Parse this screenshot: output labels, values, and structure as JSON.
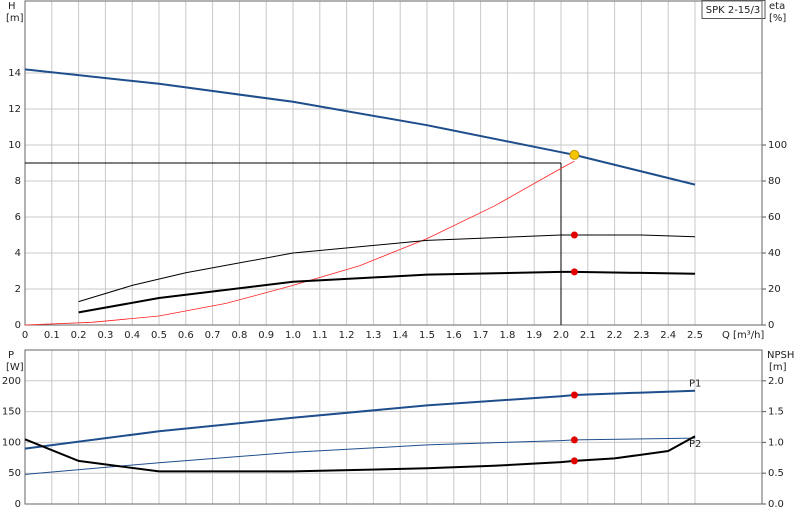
{
  "chart_data": [
    {
      "type": "line",
      "title": "SPK 2-15/3",
      "y_label": "H",
      "y_unit": "[m]",
      "y2_label": "eta",
      "y2_unit": "[%]",
      "x_label": "Q [m³/h]",
      "xlim": [
        0,
        2.75
      ],
      "xticks": [
        0,
        0.1,
        0.2,
        0.3,
        0.4,
        0.5,
        0.6,
        0.7,
        0.8,
        0.9,
        {
          "value": 1,
          "label": "1.0"
        },
        1.1,
        1.2,
        1.3,
        1.4,
        1.5,
        1.6,
        1.7,
        1.8,
        1.9,
        {
          "value": 2,
          "label": "2.0"
        },
        2.1,
        2.2,
        2.3,
        2.4,
        2.5
      ],
      "ylim": [
        0,
        18
      ],
      "yticks": [
        0,
        2,
        4,
        6,
        8,
        10,
        12,
        14
      ],
      "y2lim": [
        0,
        180
      ],
      "y2ticks": [
        0,
        20,
        40,
        60,
        80,
        100
      ],
      "grid": true,
      "marker_x": 2.05,
      "duty_point": {
        "x": 2,
        "y": 9
      },
      "series": [
        {
          "color": "#1f4e8c",
          "width": 2,
          "marker": "#f5c400",
          "x": [
            0,
            0.5,
            1,
            1.5,
            2,
            2.05,
            2.5
          ],
          "values": [
            14.2,
            13.4,
            12.4,
            11.1,
            9.6,
            9.45,
            7.8
          ]
        },
        {
          "color": "#ff2020",
          "width": 0.8,
          "axis": "y2",
          "x": [
            0,
            0.25,
            0.5,
            0.75,
            1,
            1.25,
            1.5,
            1.75,
            2,
            2.05
          ],
          "values": [
            0,
            1.5,
            5,
            12,
            22,
            33,
            48,
            66,
            87,
            91
          ]
        },
        {
          "color": "#000000",
          "width": 1,
          "axis": "y2",
          "marker": "#e00000",
          "x": [
            0.2,
            0.4,
            0.6,
            1,
            1.5,
            2,
            2.05,
            2.3,
            2.5
          ],
          "values": [
            13,
            22,
            29,
            40,
            47,
            50,
            50,
            50,
            49
          ]
        },
        {
          "color": "#000000",
          "width": 2,
          "axis": "y2",
          "marker": "#e00000",
          "x": [
            0.2,
            0.5,
            1,
            1.5,
            2,
            2.05,
            2.5
          ],
          "values": [
            7,
            15,
            24,
            28,
            29.5,
            29.5,
            28.5
          ]
        }
      ]
    },
    {
      "type": "line",
      "y_label": "P",
      "y_unit": "[W]",
      "y2_label": "NPSH",
      "y2_unit": "[m]",
      "xlim": [
        0,
        2.75
      ],
      "xticks": [
        0,
        0.1,
        0.2,
        0.3,
        0.4,
        0.5,
        0.6,
        0.7,
        0.8,
        0.9,
        1,
        1.1,
        1.2,
        1.3,
        1.4,
        1.5,
        1.6,
        1.7,
        1.8,
        1.9,
        2,
        2.1,
        2.2,
        2.3,
        2.4,
        2.5
      ],
      "ylim": [
        0,
        250
      ],
      "yticks": [
        0,
        50,
        100,
        150,
        200
      ],
      "y2lim": [
        0,
        2.5
      ],
      "y2ticks": [
        {
          "value": 0,
          "label": "0.0"
        },
        0.5,
        {
          "value": 1,
          "label": "1.0"
        },
        1.5,
        {
          "value": 2,
          "label": "2.0"
        }
      ],
      "grid": true,
      "marker_x": 2.05,
      "series": [
        {
          "name": "P1",
          "color": "#1f4e8c",
          "width": 2,
          "marker": "#e00000",
          "x": [
            0,
            0.5,
            1,
            1.5,
            2,
            2.05,
            2.5
          ],
          "values": [
            90,
            118,
            140,
            160,
            175,
            177,
            184
          ]
        },
        {
          "name": "P2",
          "color": "#1f4e8c",
          "width": 1,
          "marker": "#e00000",
          "x": [
            0,
            0.5,
            1,
            1.5,
            2,
            2.05,
            2.5
          ],
          "values": [
            48,
            67,
            84,
            96,
            103,
            104,
            107
          ]
        },
        {
          "color": "#000000",
          "width": 2,
          "axis": "y2",
          "marker": "#e00000",
          "x": [
            0,
            0.2,
            0.5,
            1,
            1.5,
            1.75,
            2,
            2.05,
            2.2,
            2.4,
            2.5
          ],
          "values": [
            1.05,
            0.7,
            0.53,
            0.53,
            0.58,
            0.62,
            0.68,
            0.7,
            0.74,
            0.86,
            1.1
          ]
        }
      ]
    }
  ]
}
